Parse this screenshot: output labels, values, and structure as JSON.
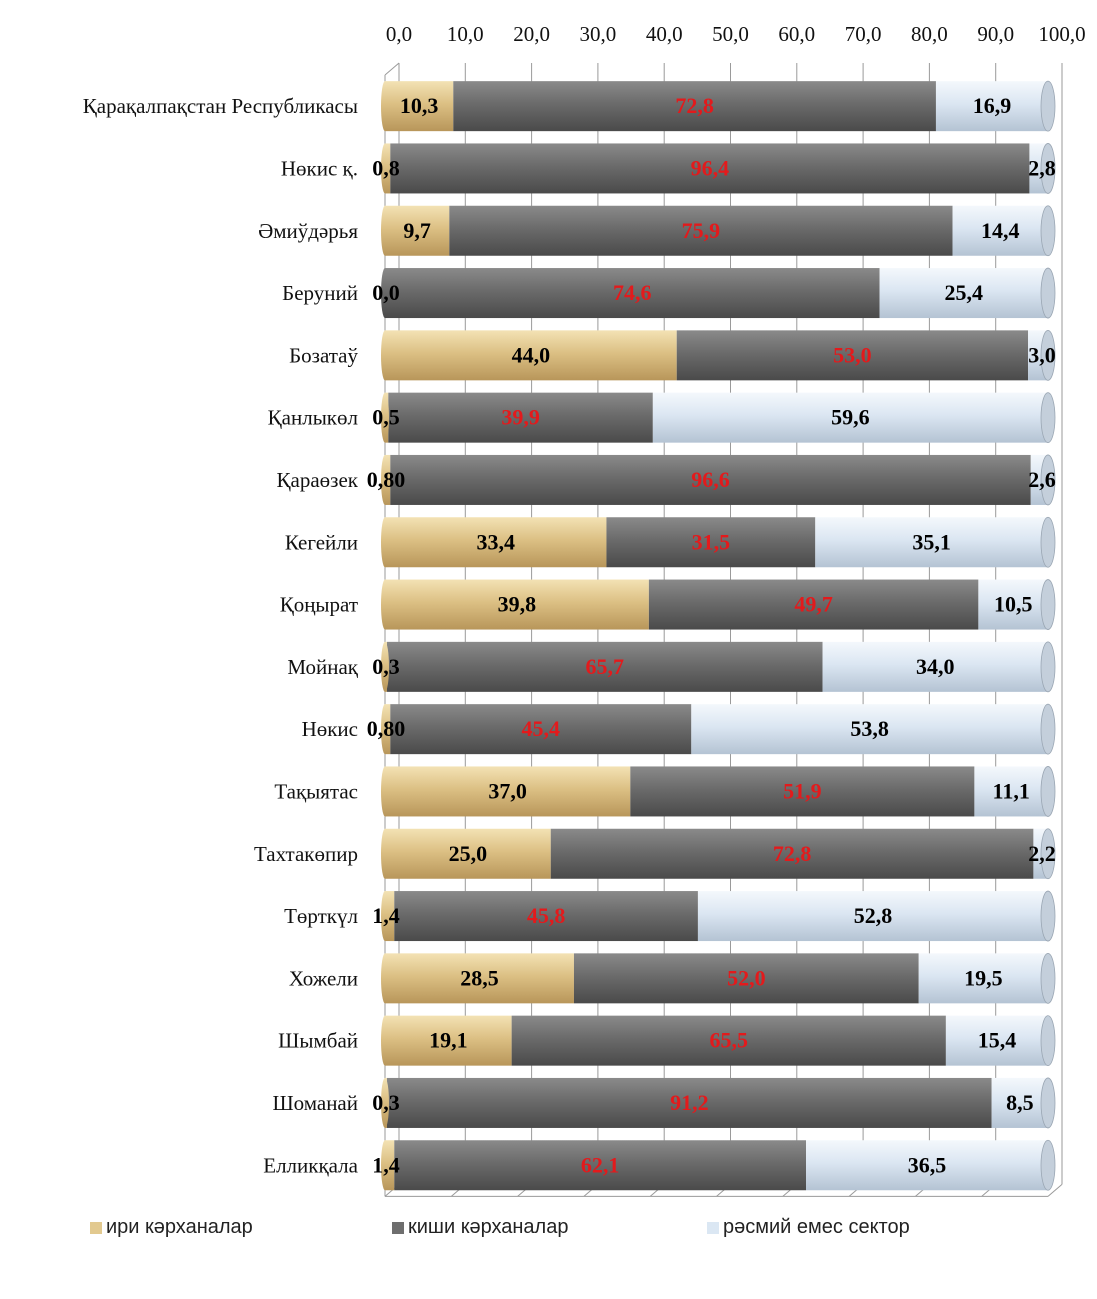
{
  "chart_data": {
    "type": "bar",
    "orientation": "horizontal",
    "stacked": true,
    "title": "",
    "xlabel": "",
    "ylabel": "",
    "xlim": [
      0,
      100
    ],
    "x_ticks": [
      "0,0",
      "10,0",
      "20,0",
      "30,0",
      "40,0",
      "50,0",
      "60,0",
      "70,0",
      "80,0",
      "90,0",
      "100,0"
    ],
    "categories": [
      "Қарақалпақстан Республикасы",
      "Нөкис қ.",
      "Әмиўдәрья",
      "Беруний",
      "Бозатаў",
      "Қанлыкөл",
      "Қараөзек",
      "Кегейли",
      "Қоңырат",
      "Мойнақ",
      "Нөкис",
      "Тақыятас",
      "Тахтакөпир",
      "Төрткүл",
      "Хожели",
      "Шымбай",
      "Шоманай",
      "Елликқала"
    ],
    "series": [
      {
        "name": "ири кәрханалар",
        "color": "#d9bb7c",
        "values": [
          10.3,
          0.8,
          9.7,
          0.0,
          44.0,
          0.5,
          0.8,
          33.4,
          39.8,
          0.3,
          0.8,
          37.0,
          25.0,
          1.4,
          28.5,
          19.1,
          0.3,
          1.4
        ],
        "labels": [
          "10,3",
          "0,8",
          "9,7",
          "0,0",
          "44,0",
          "0,5",
          "0,80",
          "33,4",
          "39,8",
          "0,3",
          "0,80",
          "37,0",
          "25,0",
          "1,4",
          "28,5",
          "19,1",
          "0,3",
          "1,4"
        ]
      },
      {
        "name": "киши кәрханалар",
        "color": "#6e6e6e",
        "values": [
          72.8,
          96.4,
          75.9,
          74.6,
          53.0,
          39.9,
          96.6,
          31.5,
          49.7,
          65.7,
          45.4,
          51.9,
          72.8,
          45.8,
          52.0,
          65.5,
          91.2,
          62.1
        ],
        "labels": [
          "72,8",
          "96,4",
          "75,9",
          "74,6",
          "53,0",
          "39,9",
          "96,6",
          "31,5",
          "49,7",
          "65,7",
          "45,4",
          "51,9",
          "72,8",
          "45,8",
          "52,0",
          "65,5",
          "91,2",
          "62,1"
        ]
      },
      {
        "name": "рәсмий емес сектор",
        "color": "#dde9f5",
        "values": [
          16.9,
          2.8,
          14.4,
          25.4,
          3.0,
          59.6,
          2.6,
          35.1,
          10.5,
          34.0,
          53.8,
          11.1,
          2.2,
          52.8,
          19.5,
          15.4,
          8.5,
          36.5
        ],
        "labels": [
          "16,9",
          "2,8",
          "14,4",
          "25,4",
          "3,0",
          "59,6",
          "2,6",
          "35,1",
          "10,5",
          "34,0",
          "53,8",
          "11,1",
          "2,2",
          "52,8",
          "19,5",
          "15,4",
          "8,5",
          "36,5"
        ]
      }
    ],
    "data_label_colors": [
      "#000000",
      "#e31a1c",
      "#000000"
    ],
    "grid": true,
    "legend_position": "bottom"
  }
}
